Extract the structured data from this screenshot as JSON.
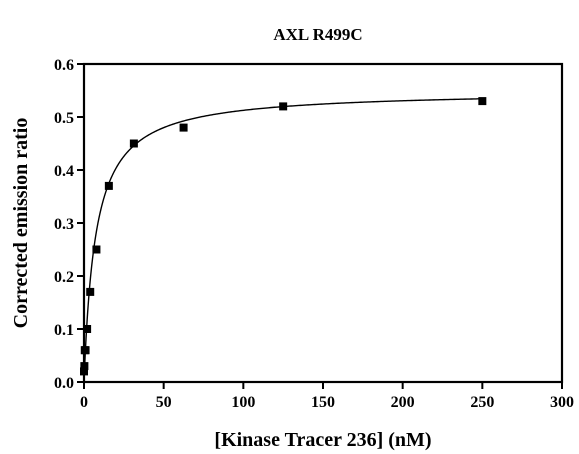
{
  "chart_data": {
    "type": "scatter",
    "title": "AXL R499C",
    "xlabel": "[Kinase Tracer 236] (nM)",
    "ylabel": "Corrected emission ratio",
    "xlim": [
      0,
      300
    ],
    "ylim": [
      0.0,
      0.6
    ],
    "xticks": [
      0,
      50,
      100,
      150,
      200,
      250,
      300
    ],
    "yticks": [
      0.0,
      0.1,
      0.2,
      0.3,
      0.4,
      0.5,
      0.6
    ],
    "ytick_labels": [
      "0.0",
      "0.1",
      "0.2",
      "0.3",
      "0.4",
      "0.5",
      "0.6"
    ],
    "grid": false,
    "legend": "none",
    "marker": "square",
    "color": "#000000",
    "points": [
      {
        "x": 0.0,
        "y": 0.02
      },
      {
        "x": 0.24,
        "y": 0.03
      },
      {
        "x": 0.49,
        "y": 0.06
      },
      {
        "x": 0.98,
        "y": 0.06
      },
      {
        "x": 1.95,
        "y": 0.1
      },
      {
        "x": 3.9,
        "y": 0.17
      },
      {
        "x": 7.8,
        "y": 0.25
      },
      {
        "x": 15.6,
        "y": 0.37
      },
      {
        "x": 31.3,
        "y": 0.45
      },
      {
        "x": 62.5,
        "y": 0.48
      },
      {
        "x": 125,
        "y": 0.52
      },
      {
        "x": 250,
        "y": 0.53
      }
    ],
    "fit": {
      "model": "one-site binding",
      "bmax": 0.55,
      "kd": 7.3,
      "x_start": 0.25,
      "x_end": 250
    }
  }
}
